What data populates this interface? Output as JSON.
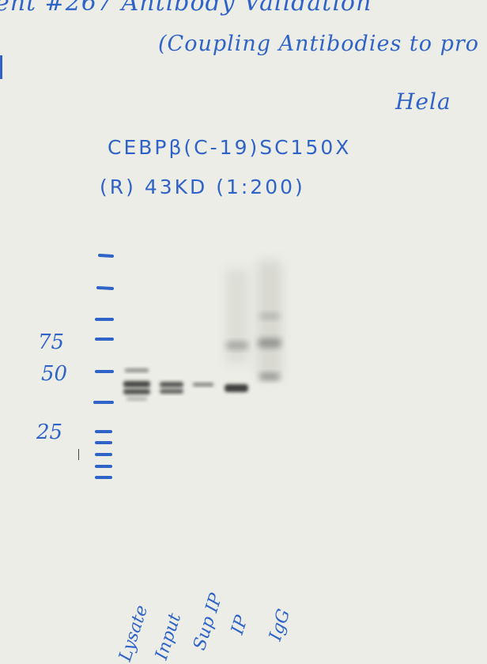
{
  "notes": {
    "header_line_1": "ent #267 Antibody Validation",
    "header_line_2": "(Coupling Antibodies to pro",
    "cell_line": "Hela",
    "antibody_line_1": "CEBPβ(C-19)SC150X",
    "antibody_line_2": "(R) 43KD (1:200)"
  },
  "ladder_labels": [
    "75",
    "50",
    "25"
  ],
  "lanes": [
    "Lysate",
    "Input",
    "Sup IP",
    "IP",
    "IgG"
  ],
  "colors": {
    "ink": "#2f63c8",
    "paper": "#ecede6",
    "band": "#2a2a2a"
  }
}
